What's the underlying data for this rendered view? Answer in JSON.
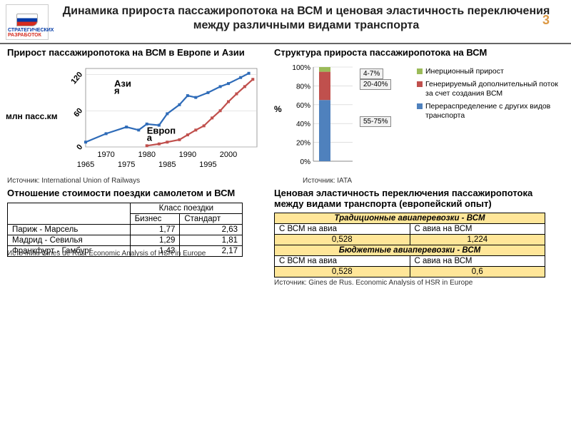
{
  "header": {
    "logo_line1": "СТРАТЕГИЧЕСКИХ",
    "logo_line2": "РАЗРАБОТОК",
    "title": "Динамика прироста пассажиропотока на ВСМ и ценовая эластичность переключения между различными видами транспорта",
    "page_number": "3"
  },
  "top_left": {
    "subtitle": "Прирост пассажиропотока на ВСМ в Европе и Азии",
    "ylabel": "млн пасс.км",
    "series_asia_label": "Азия",
    "series_europe_label": "Европа",
    "y_ticks": [
      "0",
      "60",
      "120"
    ],
    "x_ticks_top": [
      "1970",
      "1980",
      "1990",
      "2000"
    ],
    "x_ticks_bot": [
      "1965",
      "1975",
      "1985",
      "1995"
    ],
    "asia_color": "#2e6bb8",
    "europe_color": "#c0504d",
    "asia_points": [
      [
        1965,
        8
      ],
      [
        1970,
        22
      ],
      [
        1975,
        33
      ],
      [
        1978,
        28
      ],
      [
        1980,
        38
      ],
      [
        1983,
        36
      ],
      [
        1985,
        55
      ],
      [
        1988,
        70
      ],
      [
        1990,
        85
      ],
      [
        1992,
        82
      ],
      [
        1995,
        90
      ],
      [
        1998,
        100
      ],
      [
        2000,
        105
      ],
      [
        2003,
        115
      ],
      [
        2005,
        122
      ]
    ],
    "europe_points": [
      [
        1980,
        2
      ],
      [
        1983,
        5
      ],
      [
        1985,
        8
      ],
      [
        1988,
        12
      ],
      [
        1990,
        20
      ],
      [
        1992,
        28
      ],
      [
        1994,
        35
      ],
      [
        1996,
        48
      ],
      [
        1998,
        60
      ],
      [
        2000,
        75
      ],
      [
        2002,
        88
      ],
      [
        2004,
        100
      ],
      [
        2006,
        112
      ]
    ],
    "ylim": [
      0,
      130
    ],
    "xlim": [
      1965,
      2007
    ],
    "source": "Источник: International Union of Railways"
  },
  "top_right": {
    "subtitle": "Структура прироста пассажиропотока на ВСМ",
    "ylabel": "%",
    "y_ticks": [
      "0%",
      "20%",
      "40%",
      "60%",
      "80%",
      "100%"
    ],
    "bar_segments": [
      {
        "from": 0,
        "to": 65,
        "color": "#4f81bd"
      },
      {
        "from": 65,
        "to": 95,
        "color": "#c0504d"
      },
      {
        "from": 95,
        "to": 100,
        "color": "#9bbb59"
      }
    ],
    "annotations": [
      {
        "label": "4-7%",
        "top_pct": 0
      },
      {
        "label": "20-40%",
        "top_pct": 12
      },
      {
        "label": "55-75%",
        "top_pct": 52
      }
    ],
    "legend": [
      {
        "color": "#9bbb59",
        "label": "Инерционный прирост"
      },
      {
        "color": "#c0504d",
        "label": "Генерируемый дополнительный поток за счет создания ВСМ"
      },
      {
        "color": "#4f81bd",
        "label": "Перераспределение с других видов транспорта"
      }
    ],
    "source": "Источник: IATA"
  },
  "bottom_left": {
    "subtitle": "Отношение стоимости поездки самолетом и ВСМ",
    "class_header": "Класс поездки",
    "col1": "Бизнес",
    "col2": "Стандарт",
    "rows": [
      {
        "route": "Париж - Марсель",
        "biz": "1,77",
        "std": "2,63"
      },
      {
        "route": "Мадрид - Севилья",
        "biz": "1,29",
        "std": "1,81"
      },
      {
        "route": "Франкфурт - Гамбург",
        "biz": "1,43",
        "std": "2,17"
      }
    ],
    "source": "Источник: Gines de Rus. Economic Analysis of HSR in Europe"
  },
  "bottom_right": {
    "subtitle": "Ценовая эластичность переключения пассажиропотока между видами транспорта (европейский опыт)",
    "hdr1": "Традиционные авиаперевозки - ВСМ",
    "row1_l": "С ВСМ на авиа",
    "row1_r": "С авиа на ВСМ",
    "val1_l": "0,528",
    "val1_r": "1,224",
    "hdr2": "Бюджетные авиаперевозки - ВСМ",
    "row2_l": "С ВСМ на авиа",
    "row2_r": "С авиа на ВСМ",
    "val2_l": "0,528",
    "val2_r": "0,6",
    "source": "Источник: Gines de Rus. Economic Analysis of HSR in Europe"
  }
}
